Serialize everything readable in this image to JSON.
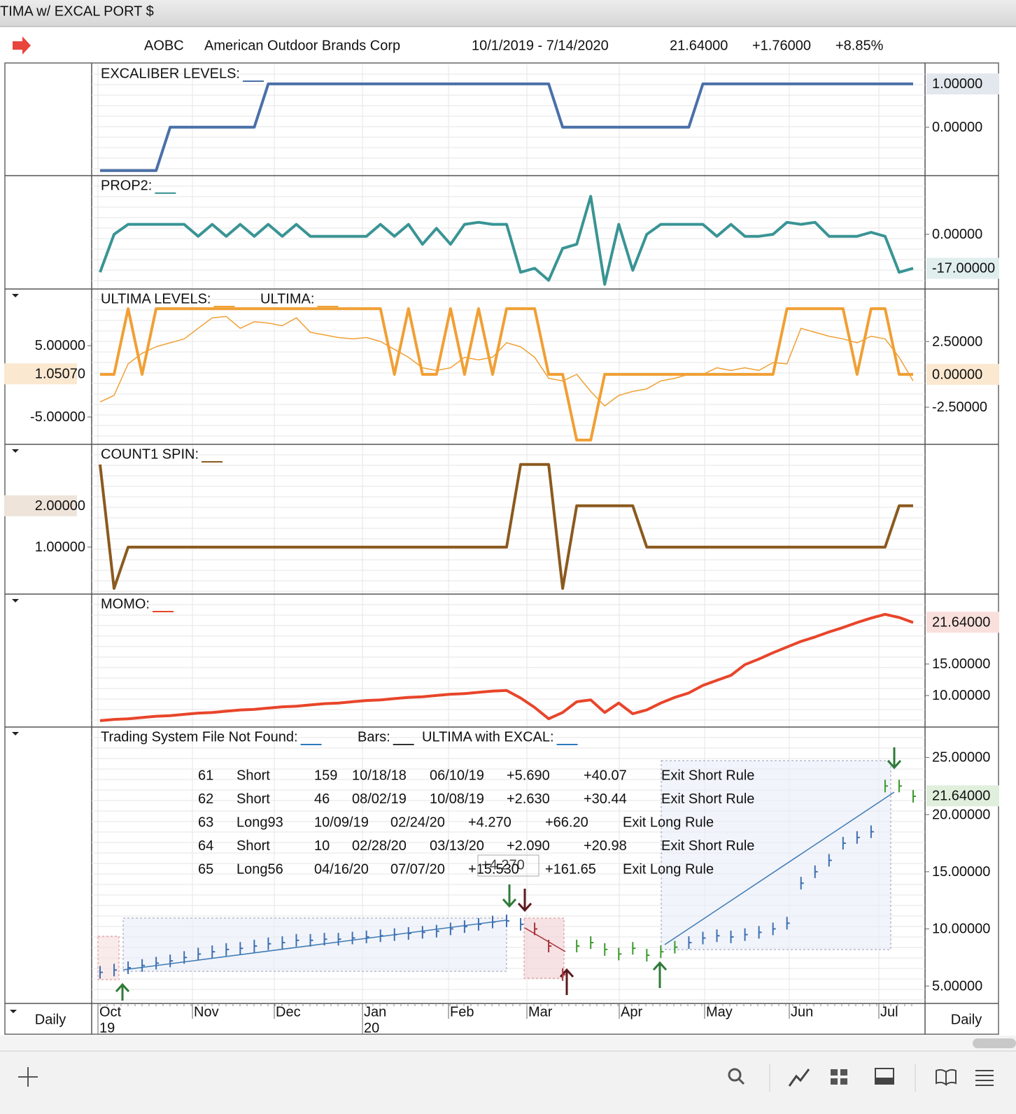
{
  "window_title": "TIMA w/ EXCAL PORT $",
  "header": {
    "symbol": "AOBC",
    "company": "American Outdoor Brands Corp",
    "range": "10/1/2019 - 7/14/2020",
    "last": "21.64000",
    "change": "+1.76000",
    "change_pct": "+8.85%"
  },
  "interval": "Daily",
  "x_axis": {
    "months": [
      "Oct",
      "Nov",
      "Dec",
      "Jan",
      "Feb",
      "Mar",
      "Apr",
      "May",
      "Jun",
      "Jul"
    ],
    "years": [
      "19",
      "20"
    ]
  },
  "chart_data": [
    {
      "type": "line",
      "axis_side": "right",
      "ylim": [
        -1.1,
        1.45
      ],
      "yticks": [
        {
          "value": 0,
          "label": "0.00000"
        }
      ],
      "last_value": {
        "value": 1,
        "label": "1.00000"
      },
      "highlight": "#e3e8ee",
      "series": [
        {
          "name": "EXCALIBER LEVELS:",
          "color": "#4a70a8",
          "width": 4,
          "values": [
            -1,
            -1,
            -1,
            -1,
            -1,
            0,
            0,
            0,
            0,
            0,
            0,
            0,
            1,
            1,
            1,
            1,
            1,
            1,
            1,
            1,
            1,
            1,
            1,
            1,
            1,
            1,
            1,
            1,
            1,
            1,
            1,
            1,
            1,
            0,
            0,
            0,
            0,
            0,
            0,
            0,
            0,
            0,
            0,
            1,
            1,
            1,
            1,
            1,
            1,
            1,
            1,
            1,
            1,
            1,
            1,
            1,
            1,
            1,
            1
          ]
        }
      ]
    },
    {
      "type": "line",
      "axis_side": "right",
      "ylim": [
        -27,
        29
      ],
      "yticks": [
        {
          "value": 0,
          "label": "0.00000"
        }
      ],
      "last_value": {
        "value": -17,
        "label": "-17.00000"
      },
      "highlight": "#e0eeee",
      "series": [
        {
          "name": "PROP2:",
          "color": "#3a9494",
          "width": 4,
          "values": [
            -19,
            0,
            5,
            5,
            5,
            5,
            5,
            -1,
            5,
            -1,
            5,
            -1,
            5,
            -1,
            5,
            -1,
            -1,
            -1,
            -1,
            -1,
            5,
            -1,
            5,
            -5,
            3,
            -5,
            5,
            6,
            5,
            5,
            -19,
            -17,
            -23,
            -7,
            -5,
            19,
            -25,
            5,
            -18,
            0,
            5,
            5,
            5,
            5,
            -1,
            5,
            -1,
            -1,
            0,
            6,
            5,
            6,
            -1,
            -1,
            -1,
            1,
            -1,
            -19,
            -17
          ]
        }
      ]
    },
    {
      "type": "line",
      "axis_side": "right",
      "ylim": [
        -5.27,
        6.44
      ],
      "yticks": [
        {
          "value": 2.5,
          "label": "2.50000"
        },
        {
          "value": -2.5,
          "label": "-2.50000"
        }
      ],
      "last_value": {
        "value": 0,
        "label": "0.00000"
      },
      "highlight": "#fbe8d0",
      "y2lim": [
        -8.73,
        12.84
      ],
      "y2ticks": [
        {
          "value": 5,
          "label": "5.00000"
        },
        {
          "value": -5,
          "label": "-5.00000"
        }
      ],
      "y2_last_value": {
        "value": 1.0507,
        "label": "1.05070"
      },
      "series": [
        {
          "name": "ULTIMA LEVELS:",
          "color": "#f0a035",
          "width": 4,
          "values": [
            0,
            0,
            5,
            0,
            5,
            5,
            5,
            5,
            5,
            5,
            5,
            5,
            5,
            5,
            5,
            5,
            5,
            5,
            5,
            5,
            5,
            0,
            5,
            0,
            0,
            5,
            0,
            5,
            0,
            5,
            5,
            5,
            0,
            0,
            -5,
            -5,
            0,
            0,
            0,
            0,
            0,
            0,
            0,
            0,
            0,
            0,
            0,
            0,
            0,
            5,
            5,
            5,
            5,
            5,
            0,
            5,
            5,
            0,
            0
          ]
        },
        {
          "name": "ULTIMA:",
          "color": "#f0a035",
          "width": 1.5,
          "values": [
            -2.1,
            -1.6,
            0.8,
            1.6,
            2.1,
            2.4,
            2.7,
            3.5,
            4.3,
            4.4,
            3.5,
            4.0,
            3.9,
            3.7,
            4.3,
            3.2,
            3.0,
            2.8,
            2.7,
            2.8,
            2.5,
            1.9,
            1.3,
            0.5,
            0.3,
            0.5,
            1.3,
            1.1,
            1.3,
            2.4,
            2.1,
            1.3,
            -0.3,
            -0.5,
            0.0,
            -1.3,
            -2.4,
            -1.6,
            -1.3,
            -1.1,
            -0.5,
            -0.3,
            0.0,
            0.0,
            0.5,
            0.3,
            0.5,
            0.3,
            0.9,
            0.8,
            3.5,
            3.2,
            2.9,
            2.7,
            2.4,
            2.9,
            2.7,
            1.3,
            -0.5
          ]
        }
      ]
    },
    {
      "type": "line",
      "axis_side": "left",
      "ylim": [
        -0.12,
        3.47
      ],
      "yticks": [
        {
          "value": 1,
          "label": "1.00000"
        }
      ],
      "last_value": {
        "value": 2,
        "label": "2.00000"
      },
      "highlight": "#eee4da",
      "series": [
        {
          "name": "COUNT1 SPIN:",
          "color": "#8b5a1e",
          "width": 4,
          "values": [
            3,
            0,
            1,
            1,
            1,
            1,
            1,
            1,
            1,
            1,
            1,
            1,
            1,
            1,
            1,
            1,
            1,
            1,
            1,
            1,
            1,
            1,
            1,
            1,
            1,
            1,
            1,
            1,
            1,
            1,
            3,
            3,
            3,
            0,
            2,
            2,
            2,
            2,
            2,
            1,
            1,
            1,
            1,
            1,
            1,
            1,
            1,
            1,
            1,
            1,
            1,
            1,
            1,
            1,
            1,
            1,
            1,
            2,
            2
          ]
        }
      ]
    },
    {
      "type": "line",
      "axis_side": "right",
      "ylim": [
        5.1,
        26
      ],
      "yticks": [
        {
          "value": 15,
          "label": "15.00000"
        },
        {
          "value": 10,
          "label": "10.00000"
        }
      ],
      "last_value": {
        "value": 21.64,
        "label": "21.64000"
      },
      "highlight": "#f9e0dc",
      "last_color": "#c0301c",
      "series": [
        {
          "name": "MOMO:",
          "color": "#e8452a",
          "width": 4,
          "values": [
            6.0,
            6.2,
            6.3,
            6.5,
            6.7,
            6.8,
            7.0,
            7.2,
            7.3,
            7.5,
            7.7,
            7.8,
            8.0,
            8.2,
            8.3,
            8.5,
            8.7,
            8.8,
            9.0,
            9.2,
            9.3,
            9.5,
            9.7,
            9.8,
            10.0,
            10.2,
            10.3,
            10.5,
            10.7,
            10.8,
            9.6,
            8.1,
            6.3,
            7.3,
            9.0,
            9.3,
            7.3,
            8.8,
            7.1,
            7.7,
            8.8,
            9.7,
            10.4,
            11.6,
            12.4,
            13.2,
            14.9,
            15.8,
            16.8,
            17.7,
            18.6,
            19.3,
            20.1,
            20.8,
            21.6,
            22.3,
            22.9,
            22.4,
            21.6
          ]
        }
      ]
    },
    {
      "type": "bars",
      "axis_side": "right",
      "ylim": [
        3.6,
        27.6
      ],
      "yticks": [
        {
          "value": 25,
          "label": "25.00000"
        },
        {
          "value": 20,
          "label": "20.00000"
        },
        {
          "value": 15,
          "label": "15.00000"
        },
        {
          "value": 10,
          "label": "10.00000"
        },
        {
          "value": 5,
          "label": "5.00000"
        }
      ],
      "last_value": {
        "value": 21.64,
        "label": "21.64000"
      },
      "highlight": "#e0efdc",
      "legend": [
        {
          "label": "Trading System File Not Found:",
          "color": "#2a7ac0"
        },
        {
          "label": "Bars:",
          "color": "#333"
        },
        {
          "label": "ULTIMA with EXCAL:",
          "color": "#2a7ac0"
        }
      ],
      "series": [
        {
          "values": [
            6.2,
            6.4,
            6.6,
            6.8,
            7.0,
            7.2,
            7.5,
            7.8,
            8.0,
            8.2,
            8.3,
            8.5,
            8.7,
            8.8,
            9.0,
            9.0,
            9.1,
            9.1,
            9.2,
            9.3,
            9.4,
            9.5,
            9.6,
            9.7,
            9.8,
            10.0,
            10.2,
            10.4,
            10.6,
            10.7,
            10.4,
            10.0,
            8.5,
            6.0,
            8.5,
            8.8,
            8.2,
            7.8,
            8.3,
            7.7,
            8.0,
            8.4,
            8.8,
            9.2,
            9.4,
            9.3,
            9.5,
            9.7,
            10.0,
            10.5,
            14.0,
            15.0,
            16.0,
            17.5,
            18.0,
            18.5,
            22.5,
            22.5,
            21.6
          ],
          "colors": [
            "#3d6fb0",
            "#3d6fb0",
            "#3d6fb0",
            "#3d6fb0",
            "#3d6fb0",
            "#3d6fb0",
            "#3d6fb0",
            "#3d6fb0",
            "#3d6fb0",
            "#3d6fb0",
            "#3d6fb0",
            "#3d6fb0",
            "#3d6fb0",
            "#3d6fb0",
            "#3d6fb0",
            "#3d6fb0",
            "#3d6fb0",
            "#3d6fb0",
            "#3d6fb0",
            "#3d6fb0",
            "#3d6fb0",
            "#3d6fb0",
            "#3d6fb0",
            "#3d6fb0",
            "#3d6fb0",
            "#3d6fb0",
            "#3d6fb0",
            "#3d6fb0",
            "#3d6fb0",
            "#3d6fb0",
            "#3d6fb0",
            "#a8323a",
            "#a8323a",
            "#a8323a",
            "#3a9a2a",
            "#3a9a2a",
            "#3a9a2a",
            "#3a9a2a",
            "#3a9a2a",
            "#3a9a2a",
            "#3a9a2a",
            "#3a9a2a",
            "#3d6fb0",
            "#3d6fb0",
            "#3d6fb0",
            "#3d6fb0",
            "#3d6fb0",
            "#3d6fb0",
            "#3d6fb0",
            "#3d6fb0",
            "#3d6fb0",
            "#3d6fb0",
            "#3d6fb0",
            "#3d6fb0",
            "#3d6fb0",
            "#3d6fb0",
            "#3a9a2a",
            "#3a9a2a",
            "#3a9a2a"
          ]
        }
      ],
      "trades": [
        [
          "61",
          "Short",
          "159",
          "10/18/18",
          "06/10/19",
          "+5.690",
          "+40.07",
          "Exit Short Rule"
        ],
        [
          "62",
          "Short",
          "46",
          "08/02/19",
          "10/08/19",
          "+2.630",
          "+30.44",
          "Exit Short Rule"
        ],
        [
          "63",
          "Long93",
          "10/09/19",
          "02/24/20",
          "+4.270",
          "+66.20",
          "Exit Long Rule"
        ],
        [
          "64",
          "Short",
          "10",
          "02/28/20",
          "03/13/20",
          "+2.090",
          "+20.98",
          "Exit Short Rule"
        ],
        [
          "65",
          "Long56",
          "04/16/20",
          "07/07/20",
          "+15.530",
          "+161.65",
          "Exit Long Rule"
        ]
      ],
      "annotation": "+4.270"
    }
  ]
}
